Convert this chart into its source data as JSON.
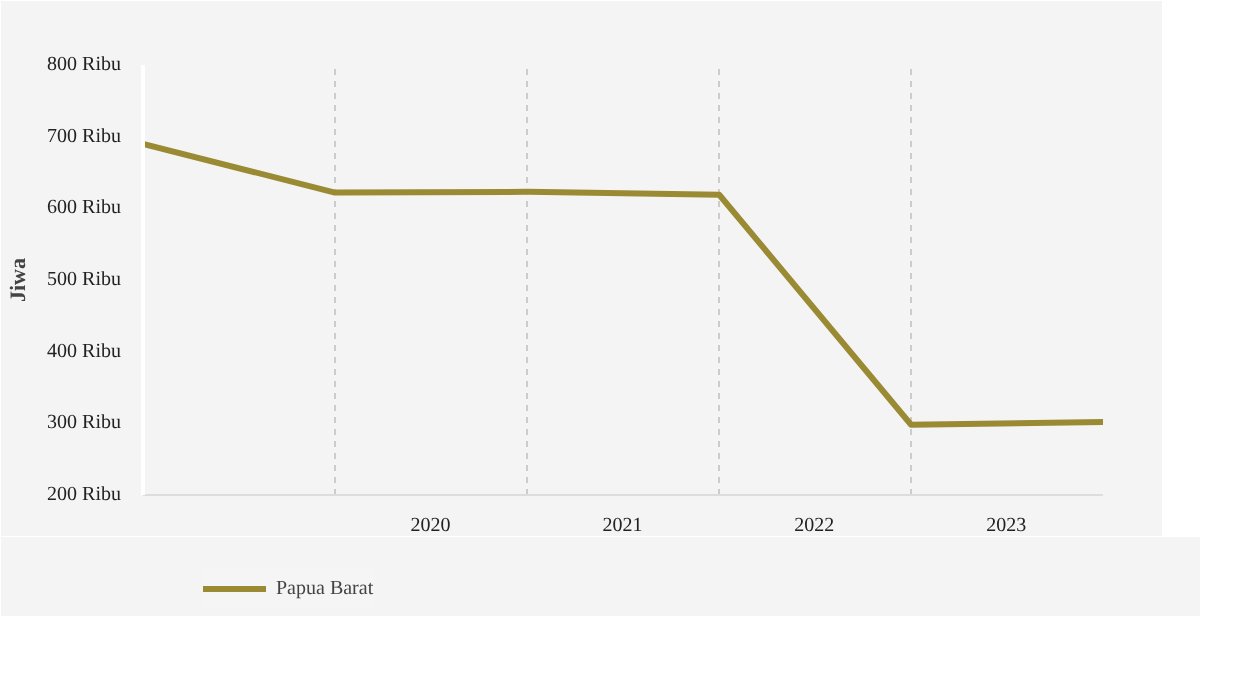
{
  "chart_data": {
    "type": "line",
    "ylabel": "Jiwa",
    "x": [
      "2019",
      "2020",
      "2021",
      "2022",
      "2023",
      "2024"
    ],
    "series": [
      {
        "name": "Papua Barat",
        "color": "#9a8a33",
        "values": [
          690,
          622,
          623,
          619,
          298,
          302
        ]
      }
    ],
    "xlim": [
      "2019",
      "2024"
    ],
    "xticks": [
      {
        "value": "2020",
        "label": null
      },
      {
        "value": "2021",
        "label": null
      },
      {
        "value": "2022",
        "label": null
      },
      {
        "value": "2023",
        "label": null
      },
      {
        "value": "2024",
        "label": null
      },
      {
        "value": "2020-07",
        "label": "2020"
      },
      {
        "value": "2021-07",
        "label": "2021"
      },
      {
        "value": "2022-07",
        "label": "2022"
      },
      {
        "value": "2023-07",
        "label": "2023"
      }
    ],
    "ylim": [
      200,
      800
    ],
    "yticks": [
      {
        "value": 200,
        "label": "200 Ribu"
      },
      {
        "value": 300,
        "label": "300 Ribu"
      },
      {
        "value": 400,
        "label": "400 Ribu"
      },
      {
        "value": 500,
        "label": "500 Ribu"
      },
      {
        "value": 600,
        "label": "600 Ribu"
      },
      {
        "value": 700,
        "label": "700 Ribu"
      },
      {
        "value": 800,
        "label": "800 Ribu"
      }
    ],
    "grid": "x",
    "legend": "bottom left",
    "marker": "none",
    "line_style": "solid"
  }
}
